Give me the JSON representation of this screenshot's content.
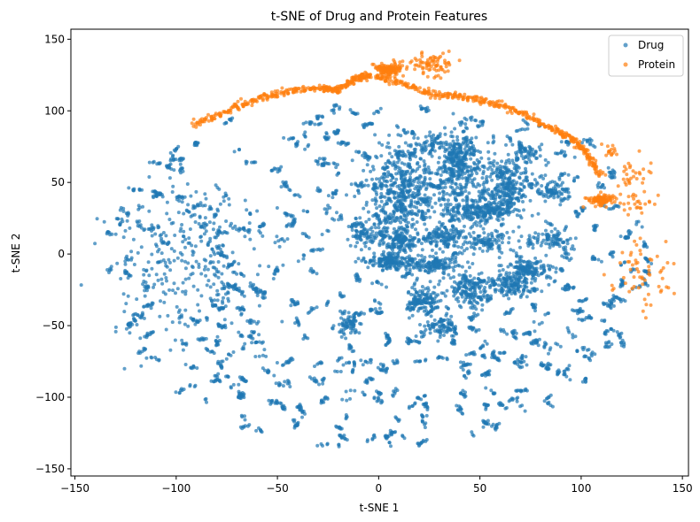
{
  "chart_data": {
    "type": "scatter",
    "title": "t-SNE of Drug and Protein Features",
    "xlabel": "t-SNE 1",
    "ylabel": "t-SNE 2",
    "xlim": [
      -152,
      153
    ],
    "ylim": [
      -155,
      157
    ],
    "xticks": [
      -150,
      -100,
      -50,
      0,
      50,
      100,
      150
    ],
    "yticks": [
      -150,
      -100,
      -50,
      0,
      50,
      100,
      150
    ],
    "grid": false,
    "legend_position": "top-right",
    "series": [
      {
        "name": "Drug",
        "color": "#1f77b4",
        "description": "dense cloud of small clusters",
        "clusters": [
          {
            "x": 12,
            "y": 45,
            "n": 500,
            "sx": 9,
            "sy": 16
          },
          {
            "x": 40,
            "y": 65,
            "n": 300,
            "sx": 5,
            "sy": 12
          },
          {
            "x": 62,
            "y": 48,
            "n": 300,
            "sx": 7,
            "sy": 10
          },
          {
            "x": 45,
            "y": 30,
            "n": 200,
            "sx": 8,
            "sy": 5
          },
          {
            "x": 10,
            "y": 10,
            "n": 150,
            "sx": 5,
            "sy": 5
          },
          {
            "x": 33,
            "y": 12,
            "n": 120,
            "sx": 5,
            "sy": 4
          },
          {
            "x": 5,
            "y": -5,
            "n": 150,
            "sx": 5,
            "sy": 3
          },
          {
            "x": 28,
            "y": -7,
            "n": 120,
            "sx": 6,
            "sy": 3
          },
          {
            "x": 45,
            "y": -25,
            "n": 150,
            "sx": 5,
            "sy": 6
          },
          {
            "x": 65,
            "y": -22,
            "n": 130,
            "sx": 5,
            "sy": 4
          },
          {
            "x": 75,
            "y": -10,
            "n": 150,
            "sx": 6,
            "sy": 4
          },
          {
            "x": 22,
            "y": -32,
            "n": 130,
            "sx": 4,
            "sy": 5
          },
          {
            "x": 55,
            "y": 8,
            "n": 100,
            "sx": 6,
            "sy": 4
          },
          {
            "x": 85,
            "y": 10,
            "n": 80,
            "sx": 5,
            "sy": 3
          },
          {
            "x": -8,
            "y": 15,
            "n": 80,
            "sx": 4,
            "sy": 4
          },
          {
            "x": 30,
            "y": -50,
            "n": 80,
            "sx": 4,
            "sy": 4
          },
          {
            "x": -15,
            "y": -50,
            "n": 60,
            "sx": 3,
            "sy": 4
          },
          {
            "x": 85,
            "y": 45,
            "n": 70,
            "sx": 5,
            "sy": 4
          },
          {
            "x": 73,
            "y": 70,
            "n": 50,
            "sx": 3,
            "sy": 3
          },
          {
            "x": 25,
            "y": 75,
            "n": 50,
            "sx": 4,
            "sy": 4
          },
          {
            "x": 60,
            "y": 30,
            "n": 60,
            "sx": 5,
            "sy": 3
          }
        ]
      },
      {
        "name": "Protein",
        "color": "#ff7f0e",
        "description": "arc along the upper boundary and clusters at right",
        "arc": [
          [
            -92,
            90
          ],
          [
            -75,
            100
          ],
          [
            -60,
            108
          ],
          [
            -45,
            114
          ],
          [
            -28,
            116
          ],
          [
            -20,
            114
          ],
          [
            -12,
            122
          ],
          [
            -5,
            125
          ],
          [
            10,
            120
          ],
          [
            25,
            112
          ],
          [
            40,
            110
          ],
          [
            55,
            106
          ],
          [
            70,
            99
          ],
          [
            85,
            88
          ],
          [
            96,
            80
          ],
          [
            103,
            70
          ],
          [
            110,
            55
          ]
        ],
        "clusters": [
          {
            "x": 5,
            "y": 129,
            "n": 120,
            "sx": 3,
            "sy": 2
          },
          {
            "x": 25,
            "y": 132,
            "n": 80,
            "sx": 6,
            "sy": 4
          },
          {
            "x": 110,
            "y": 38,
            "n": 100,
            "sx": 3,
            "sy": 2
          },
          {
            "x": 125,
            "y": 55,
            "n": 30,
            "sx": 6,
            "sy": 6
          },
          {
            "x": 125,
            "y": 35,
            "n": 30,
            "sx": 8,
            "sy": 5
          },
          {
            "x": 130,
            "y": -15,
            "n": 60,
            "sx": 7,
            "sy": 12
          },
          {
            "x": 115,
            "y": 72,
            "n": 15,
            "sx": 2,
            "sy": 2
          }
        ]
      }
    ]
  }
}
